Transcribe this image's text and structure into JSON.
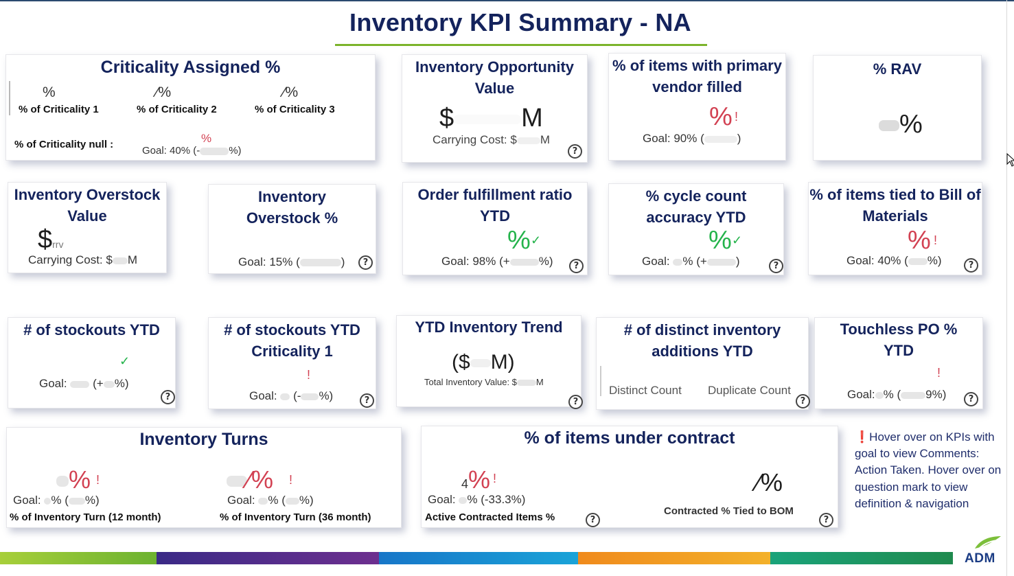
{
  "page": {
    "title": "Inventory KPI Summary - NA"
  },
  "colors": {
    "title": "#14235c",
    "underline": "#7cb42b",
    "red": "#d24152",
    "green": "#24b34b",
    "note": "#1f2d6b"
  },
  "cards": {
    "criticality": {
      "title": "Criticality Assigned %",
      "c1_value": "%",
      "c1_label": "% of Criticality 1",
      "c2_value": "⁄%",
      "c2_label": "% of Criticality 2",
      "c3_value": "⁄%",
      "c3_label": "% of Criticality 3",
      "null_label": "% of Criticality null :",
      "null_value": "%",
      "goal": "Goal: 40% (-",
      "goal_end": "%)"
    },
    "opportunity": {
      "title": "Inventory Opportunity Value",
      "value_prefix": "$",
      "value_suffix": "M",
      "carrying_prefix": "Carrying Cost: $",
      "carrying_suffix": "M"
    },
    "primary_vendor": {
      "title": "% of items with primary vendor filled",
      "value": "%",
      "goal": "Goal: 90% (",
      "goal_end": ")"
    },
    "rav": {
      "title": "% RAV",
      "value": "%"
    },
    "overstock_value": {
      "title": "Inventory Overstock Value",
      "value_prefix": "$",
      "value_tail": "rrv",
      "carrying_prefix": "Carrying Cost: $",
      "carrying_suffix": "M"
    },
    "overstock_pct": {
      "title": "Inventory Overstock %",
      "goal": "Goal: 15% (",
      "goal_end": ")"
    },
    "order_fulfillment": {
      "title": "Order fulfillment ratio YTD",
      "value": "%",
      "goal": "Goal: 98% (+",
      "goal_end": "%)"
    },
    "cycle_count": {
      "title": "% cycle count accuracy YTD",
      "value": "%",
      "goal": "Goal:",
      "goal_mid": "% (+",
      "goal_end": ")"
    },
    "bom": {
      "title": "% of items tied to Bill of Materials",
      "value": "%",
      "goal": "Goal: 40% (",
      "goal_end": "%)"
    },
    "stockouts": {
      "title": "# of stockouts YTD",
      "goal": "Goal:",
      "goal_mid": "(+",
      "goal_end": "%)"
    },
    "stockouts_c1": {
      "title": "# of stockouts YTD Criticality 1",
      "goal": "Goal:",
      "goal_mid": "(-",
      "goal_end": "%)"
    },
    "trend": {
      "title": "YTD Inventory Trend",
      "value_prefix": "($",
      "value_suffix": "M)",
      "total_label": "Total Inventory Value: $",
      "total_suffix": "M"
    },
    "distinct_additions": {
      "title": "# of distinct inventory additions YTD",
      "distinct_label": "Distinct Count",
      "duplicate_label": "Duplicate Count"
    },
    "touchless": {
      "title": "Touchless PO % YTD",
      "goal": "Goal:",
      "goal_mid": "% (",
      "goal_end": "9%)"
    },
    "turns": {
      "title": "Inventory Turns",
      "v12": "%",
      "goal12": "Goal:",
      "goal12_mid": "% (",
      "goal12_end": "%)",
      "label12": "% of Inventory Turn (12 month)",
      "v36": "⁄%",
      "goal36": "Goal:",
      "goal36_mid": "% (",
      "goal36_end": "%)",
      "label36": "% of Inventory Turn (36 month)"
    },
    "contract": {
      "title": "% of items under contract",
      "value_prefix": "4",
      "value": "%",
      "goal": "Goal:",
      "goal_end": "% (-33.3%)",
      "active_label": "Active Contracted Items %",
      "bom_value": "⁄%",
      "bom_label": "Contracted % Tied to BOM"
    }
  },
  "note": {
    "icon": "exclamation-icon",
    "text": "Hover over on KPIs with goal to view Comments: Action Taken. Hover over on question mark to view definition & navigation"
  },
  "logo": {
    "text": "ADM"
  },
  "help_glyph": "?"
}
